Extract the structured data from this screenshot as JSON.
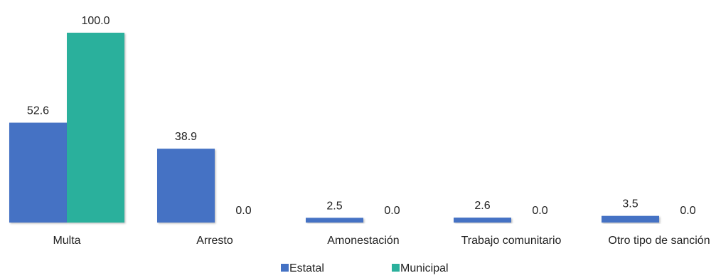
{
  "chart_data": {
    "type": "bar",
    "categories": [
      "Multa",
      "Arresto",
      "Amonestación",
      "Trabajo comunitario",
      "Otro tipo de sanción"
    ],
    "series": [
      {
        "name": "Estatal",
        "values": [
          52.6,
          38.9,
          2.5,
          2.6,
          3.5
        ],
        "color": "#4472C4"
      },
      {
        "name": "Municipal",
        "values": [
          100.0,
          0.0,
          0.0,
          0.0,
          0.0
        ],
        "color": "#2BB09C"
      }
    ],
    "ylim": [
      0,
      100
    ],
    "grid": false,
    "legend_position": "bottom-center",
    "value_format": "one-decimal"
  }
}
